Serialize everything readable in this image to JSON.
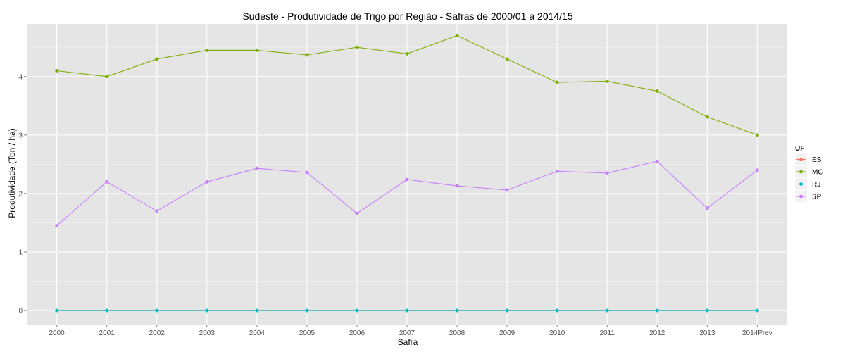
{
  "chart_data": {
    "type": "line",
    "title": "Sudeste  - Produtividade de Trigo por Região - Safras de 2000/01 a 2014/15",
    "xlabel": "Safra",
    "ylabel": "Produtividade (Ton / ha)",
    "categories": [
      "2000",
      "2001",
      "2002",
      "2003",
      "2004",
      "2005",
      "2006",
      "2007",
      "2008",
      "2009",
      "2010",
      "2011",
      "2012",
      "2013",
      "2014Prev"
    ],
    "yticks": [
      0,
      1,
      2,
      3,
      4
    ],
    "ylim": [
      -0.24,
      4.9
    ],
    "grid": true,
    "legend": {
      "title": "UF",
      "position": "right"
    },
    "series": [
      {
        "name": "ES",
        "color": "#F8766D",
        "values": [
          0,
          0,
          0,
          0,
          0,
          0,
          0,
          0,
          0,
          0,
          0,
          0,
          0,
          0,
          0
        ]
      },
      {
        "name": "MG",
        "color": "#7CAE00",
        "values": [
          4.1,
          4.0,
          4.3,
          4.45,
          4.45,
          4.37,
          4.5,
          4.39,
          4.7,
          4.3,
          3.9,
          3.92,
          3.75,
          3.31,
          3.0
        ]
      },
      {
        "name": "RJ",
        "color": "#00BFC4",
        "values": [
          0,
          0,
          0,
          0,
          0,
          0,
          0,
          0,
          0,
          0,
          0,
          0,
          0,
          0,
          0
        ]
      },
      {
        "name": "SP",
        "color": "#C77CFF",
        "values": [
          1.45,
          2.2,
          1.7,
          2.2,
          2.43,
          2.36,
          1.66,
          2.24,
          2.13,
          2.06,
          2.38,
          2.35,
          2.55,
          1.75,
          2.4
        ]
      }
    ]
  }
}
